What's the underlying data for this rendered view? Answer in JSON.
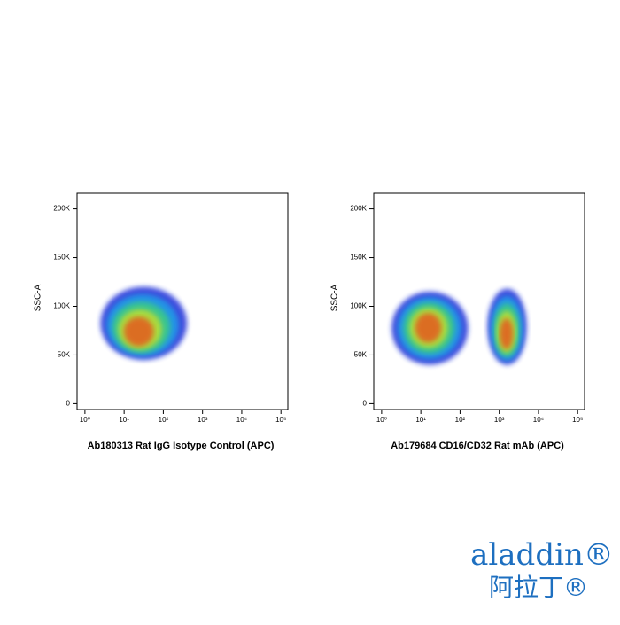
{
  "chart_data": [
    {
      "type": "density",
      "ylabel": "SSC-A",
      "xlabel": "Ab180313 Rat IgG Isotype Control (APC)",
      "xscale": "log",
      "xlim": [
        0.63,
        150000
      ],
      "ylim": [
        -6000,
        216000
      ],
      "xticks": [
        {
          "value": 1,
          "label": "10⁰"
        },
        {
          "value": 10,
          "label": "10¹"
        },
        {
          "value": 100,
          "label": "10²"
        },
        {
          "value": 1000,
          "label": "10³"
        },
        {
          "value": 10000,
          "label": "10⁴"
        },
        {
          "value": 100000,
          "label": "10⁵"
        }
      ],
      "yticks": [
        0,
        {
          "value": 50000,
          "label": "50K"
        },
        {
          "value": 100000,
          "label": "100K"
        },
        {
          "value": 150000,
          "label": "150K"
        },
        {
          "value": 200000,
          "label": "200K"
        }
      ],
      "colormap": [
        "#1f2fd8",
        "#1aa6e8",
        "#3fd17a",
        "#c8e02a",
        "#e8521a"
      ],
      "populations": [
        {
          "x_range": [
            2.5,
            400
          ],
          "y_range": [
            45000,
            120000
          ],
          "peak": [
            22,
            72000
          ]
        }
      ]
    },
    {
      "type": "density",
      "ylabel": "SSC-A",
      "xlabel": "Ab179684 CD16/CD32 Rat mAb (APC)",
      "xscale": "log",
      "xlim": [
        0.63,
        150000
      ],
      "ylim": [
        -6000,
        216000
      ],
      "xticks": [
        {
          "value": 1,
          "label": "10⁰"
        },
        {
          "value": 10,
          "label": "10¹"
        },
        {
          "value": 100,
          "label": "10²"
        },
        {
          "value": 1000,
          "label": "10³"
        },
        {
          "value": 10000,
          "label": "10⁴"
        },
        {
          "value": 100000,
          "label": "10⁵"
        }
      ],
      "yticks": [
        0,
        {
          "value": 50000,
          "label": "50K"
        },
        {
          "value": 100000,
          "label": "100K"
        },
        {
          "value": 150000,
          "label": "150K"
        },
        {
          "value": 200000,
          "label": "200K"
        }
      ],
      "colormap": [
        "#1f2fd8",
        "#1aa6e8",
        "#3fd17a",
        "#c8e02a",
        "#e8521a"
      ],
      "populations": [
        {
          "x_range": [
            1.8,
            160
          ],
          "y_range": [
            40000,
            115000
          ],
          "peak": [
            15,
            78000
          ]
        },
        {
          "x_range": [
            500,
            5000
          ],
          "y_range": [
            40000,
            118000
          ],
          "peak": [
            1500,
            70000
          ]
        }
      ]
    }
  ],
  "logo": {
    "name": "aladdin®",
    "name_cn": "阿拉丁®"
  }
}
